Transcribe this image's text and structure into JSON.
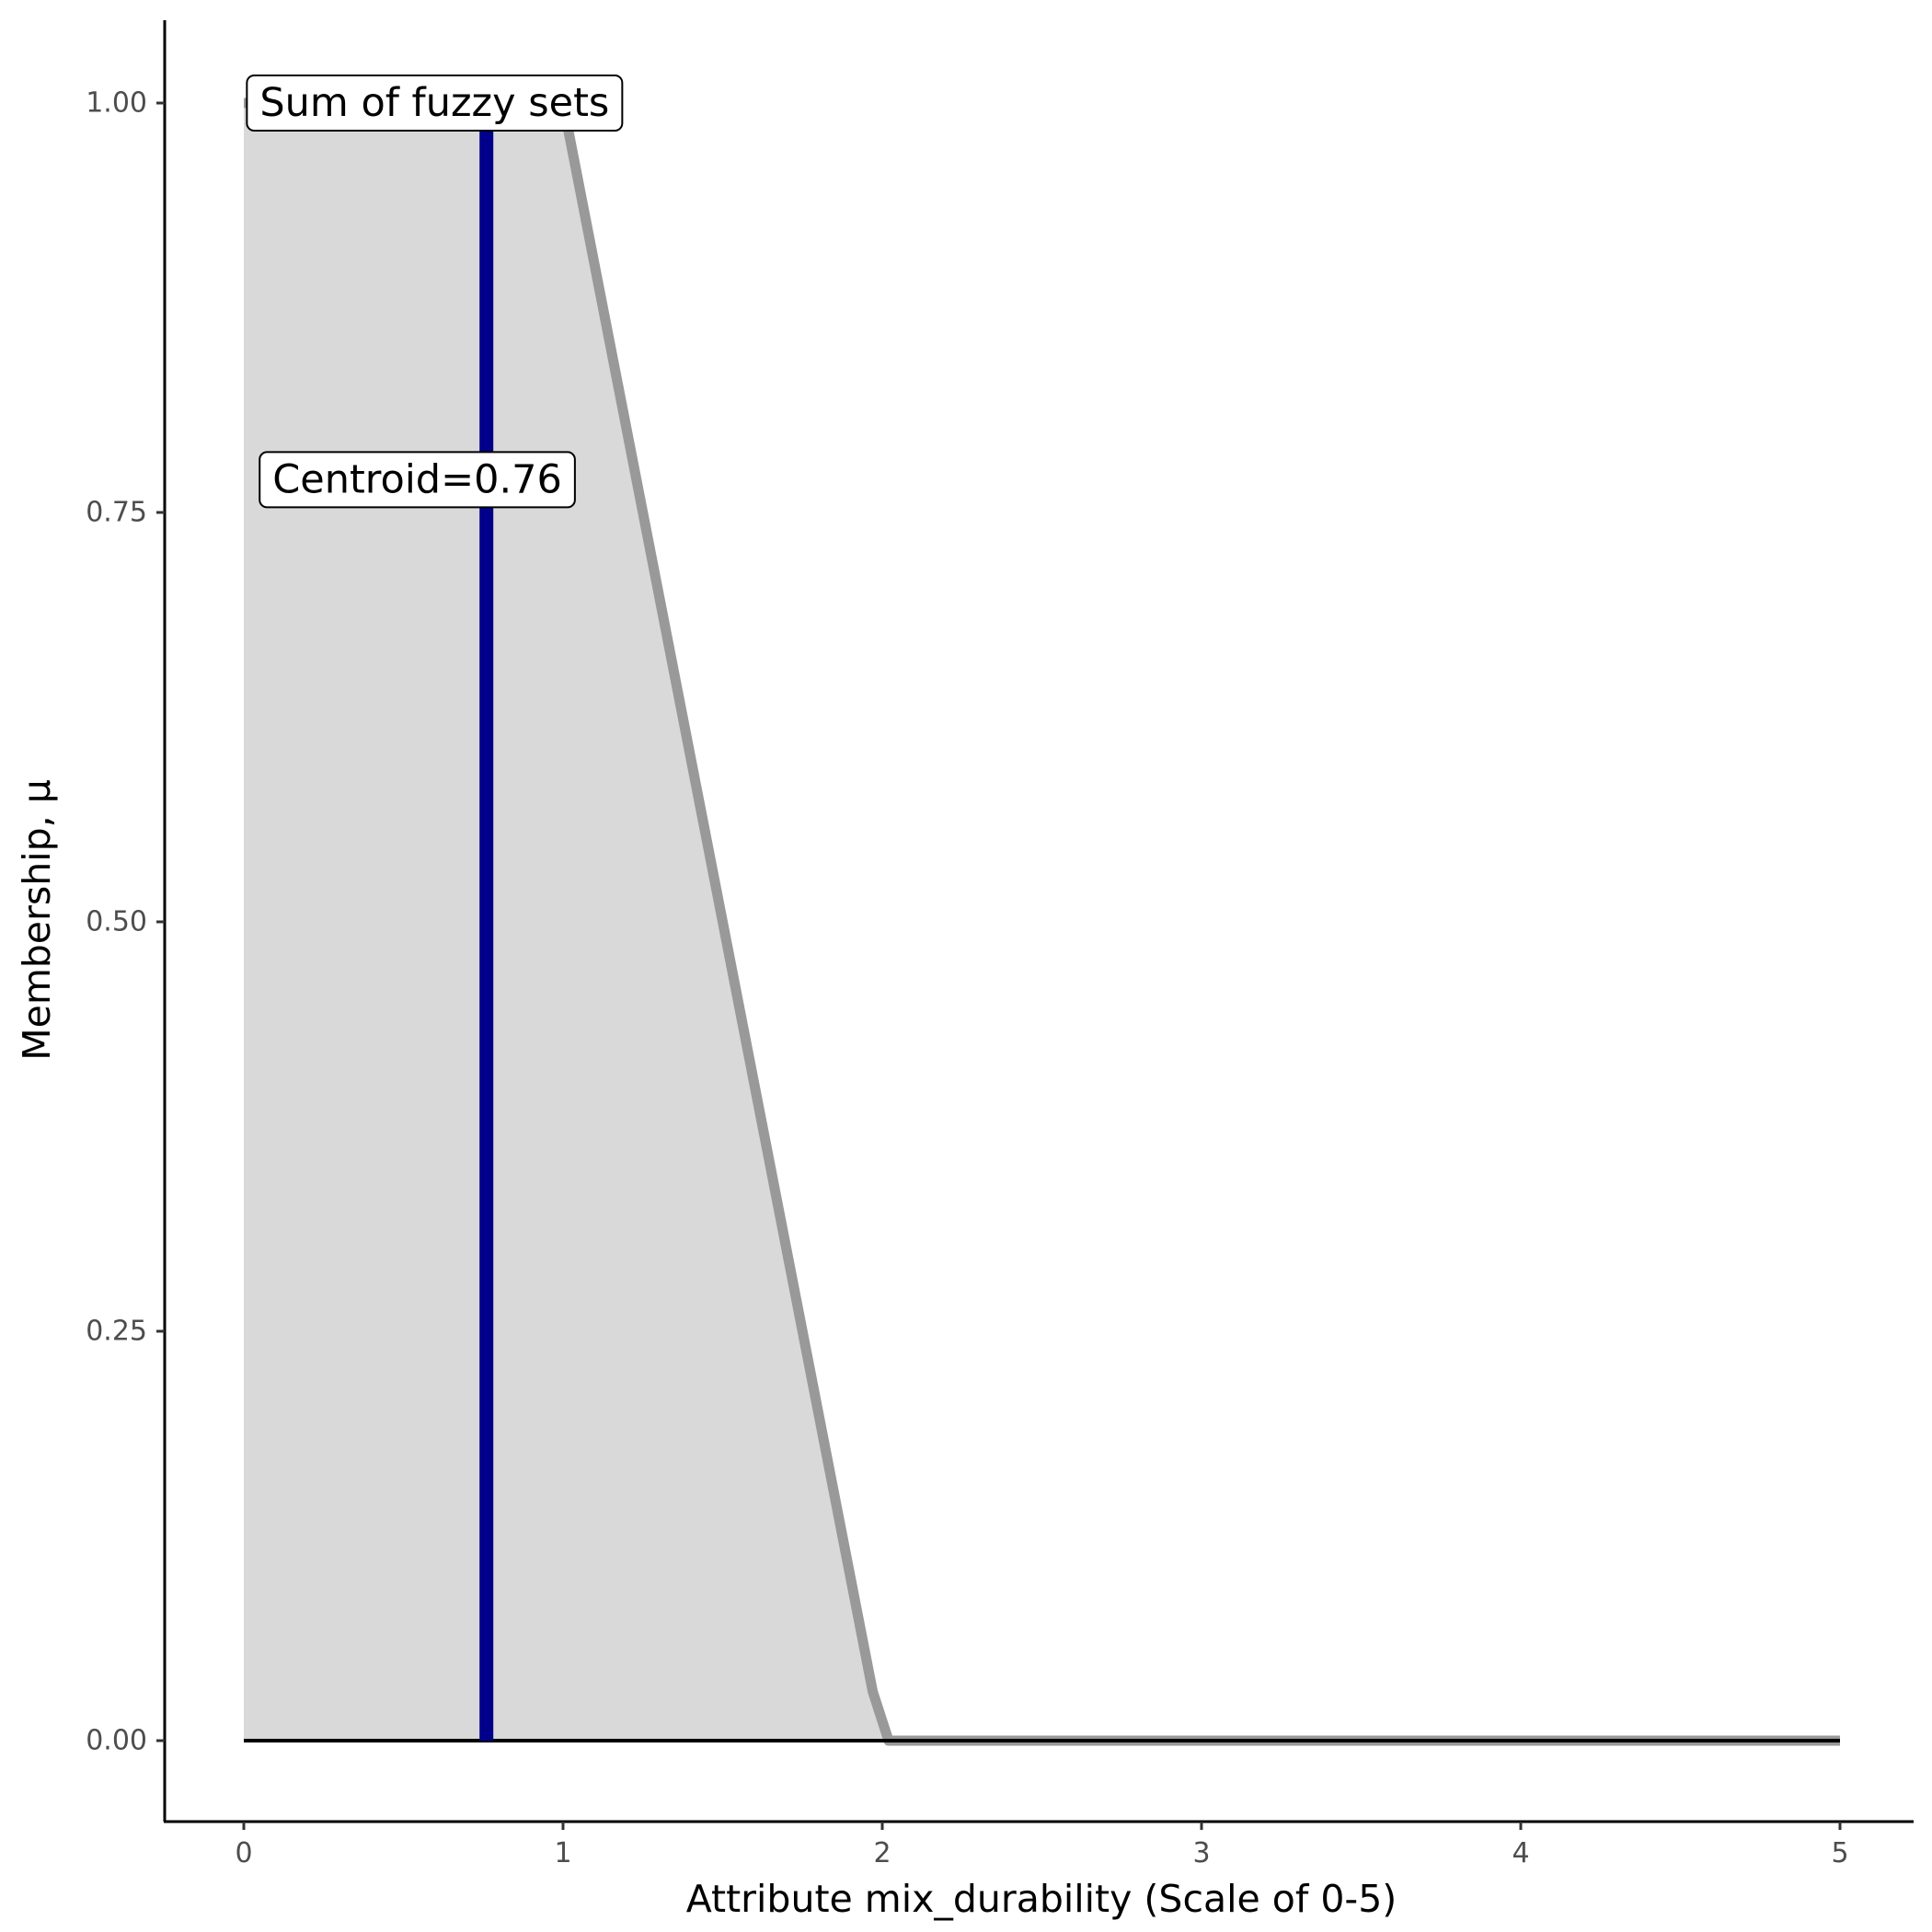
{
  "chart_data": {
    "type": "area",
    "xlabel": "Attribute mix_durability (Scale of 0-5)",
    "ylabel": "Membership, μ",
    "xlim": [
      -0.25,
      5.25
    ],
    "ylim": [
      -0.05,
      1.05
    ],
    "x_ticks": [
      0,
      1,
      2,
      3,
      4,
      5
    ],
    "x_tick_labels": [
      "0",
      "1",
      "2",
      "3",
      "4",
      "5"
    ],
    "y_ticks": [
      0,
      0.25,
      0.5,
      0.75,
      1.0
    ],
    "y_tick_labels": [
      "0.00",
      "0.25",
      "0.50",
      "0.75",
      "1.00"
    ],
    "grid": false,
    "legend": "none",
    "series": [
      {
        "values": [
          {
            "x": 0,
            "y": 1.0
          },
          {
            "x": 1.0,
            "y": 1.0
          },
          {
            "x": 1.97,
            "y": 0.03
          },
          {
            "x": 2.02,
            "y": 0.0
          },
          {
            "x": 5,
            "y": 0.0
          }
        ],
        "fill_color": "#d9d9d9",
        "line_color": "#999999"
      }
    ],
    "baseline": {
      "x_start": 0,
      "x_end": 5,
      "y": 0,
      "color": "#000000"
    },
    "centroid": {
      "x": 0.76,
      "y_start": 0,
      "y_end": 1.0,
      "color": "#00008b"
    },
    "annotations": [
      {
        "text": "Sum of fuzzy sets",
        "x": 0.05,
        "y": 1.0
      },
      {
        "text": "Centroid=0.76",
        "x": 0.09,
        "y": 0.77
      }
    ]
  }
}
